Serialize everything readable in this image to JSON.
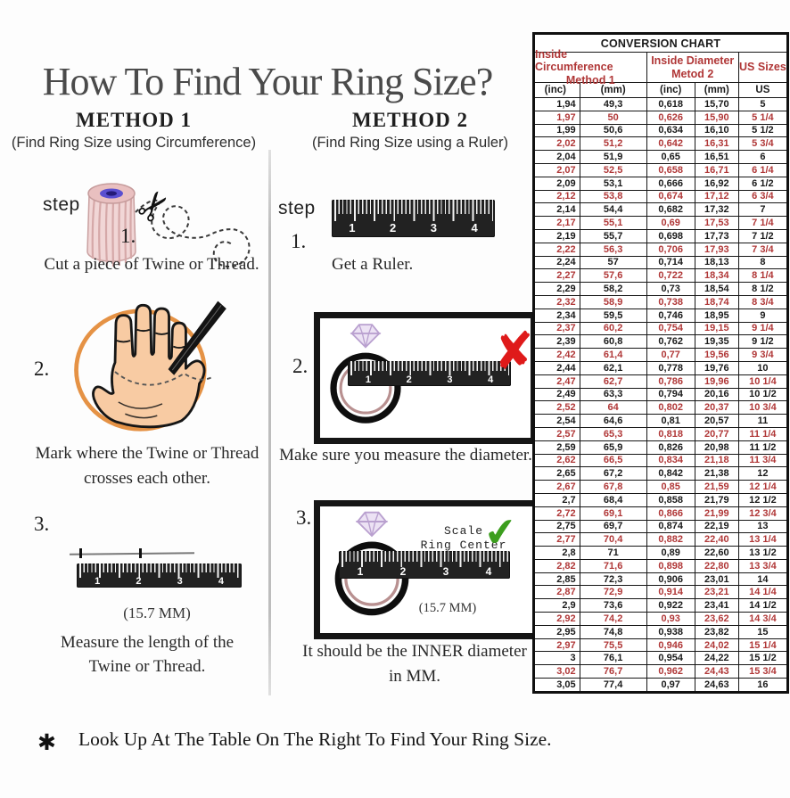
{
  "title": "How To Find Your Ring Size?",
  "method1": {
    "heading": "METHOD 1",
    "subheading": "(Find Ring Size using Circumference)",
    "step_label": "step",
    "step1_num": "1.",
    "step1_caption": "Cut a piece of  Twine or Thread.",
    "step2_num": "2.",
    "step2_caption_line1": "Mark where the Twine or Thread",
    "step2_caption_line2": "crosses each other.",
    "step3_num": "3.",
    "step3_note": "(15.7 MM)",
    "step3_caption_line1": "Measure the length of the",
    "step3_caption_line2": "Twine or Thread."
  },
  "method2": {
    "heading": "METHOD 2",
    "subheading": "(Find Ring Size using a Ruler)",
    "step_label": "step",
    "step1_num": "1.",
    "step1_caption": "Get a Ruler.",
    "step2_num": "2.",
    "step2_caption": "Make sure you measure the diameter.",
    "step3_num": "3.",
    "step3_scale_line1": "Scale",
    "step3_scale_line2": "Ring Center",
    "step3_note": "(15.7 MM)",
    "step3_caption_line1": "It should be the INNER diameter",
    "step3_caption_line2": "in MM.",
    "x_icon": "✘",
    "check_icon": "✔"
  },
  "footnote": {
    "bullet": "✱",
    "text": "Look Up At The Table On The Right To Find Your Ring Size."
  },
  "ruler_numbers": [
    "1",
    "2",
    "3",
    "4"
  ],
  "conversion_chart": {
    "title": "CONVERSION CHART",
    "group_headers": [
      {
        "line1": "Inside Circumference",
        "line2": "Method 1"
      },
      {
        "line1": "Inside Diameter",
        "line2": "Metod 2"
      },
      {
        "line1": "US Sizes",
        "line2": ""
      }
    ],
    "sub_headers": [
      "(inc)",
      "(mm)",
      "(inc)",
      "(mm)",
      "US"
    ],
    "rows": [
      [
        "1,94",
        "49,3",
        "0,618",
        "15,70",
        "5"
      ],
      [
        "1,97",
        "50",
        "0,626",
        "15,90",
        "5 1/4"
      ],
      [
        "1,99",
        "50,6",
        "0,634",
        "16,10",
        "5 1/2"
      ],
      [
        "2,02",
        "51,2",
        "0,642",
        "16,31",
        "5 3/4"
      ],
      [
        "2,04",
        "51,9",
        "0,65",
        "16,51",
        "6"
      ],
      [
        "2,07",
        "52,5",
        "0,658",
        "16,71",
        "6 1/4"
      ],
      [
        "2,09",
        "53,1",
        "0,666",
        "16,92",
        "6 1/2"
      ],
      [
        "2,12",
        "53,8",
        "0,674",
        "17,12",
        "6 3/4"
      ],
      [
        "2,14",
        "54,4",
        "0,682",
        "17,32",
        "7"
      ],
      [
        "2,17",
        "55,1",
        "0,69",
        "17,53",
        "7 1/4"
      ],
      [
        "2,19",
        "55,7",
        "0,698",
        "17,73",
        "7 1/2"
      ],
      [
        "2,22",
        "56,3",
        "0,706",
        "17,93",
        "7 3/4"
      ],
      [
        "2,24",
        "57",
        "0,714",
        "18,13",
        "8"
      ],
      [
        "2,27",
        "57,6",
        "0,722",
        "18,34",
        "8 1/4"
      ],
      [
        "2,29",
        "58,2",
        "0,73",
        "18,54",
        "8 1/2"
      ],
      [
        "2,32",
        "58,9",
        "0,738",
        "18,74",
        "8 3/4"
      ],
      [
        "2,34",
        "59,5",
        "0,746",
        "18,95",
        "9"
      ],
      [
        "2,37",
        "60,2",
        "0,754",
        "19,15",
        "9 1/4"
      ],
      [
        "2,39",
        "60,8",
        "0,762",
        "19,35",
        "9 1/2"
      ],
      [
        "2,42",
        "61,4",
        "0,77",
        "19,56",
        "9 3/4"
      ],
      [
        "2,44",
        "62,1",
        "0,778",
        "19,76",
        "10"
      ],
      [
        "2,47",
        "62,7",
        "0,786",
        "19,96",
        "10 1/4"
      ],
      [
        "2,49",
        "63,3",
        "0,794",
        "20,16",
        "10 1/2"
      ],
      [
        "2,52",
        "64",
        "0,802",
        "20,37",
        "10 3/4"
      ],
      [
        "2,54",
        "64,6",
        "0,81",
        "20,57",
        "11"
      ],
      [
        "2,57",
        "65,3",
        "0,818",
        "20,77",
        "11 1/4"
      ],
      [
        "2,59",
        "65,9",
        "0,826",
        "20,98",
        "11 1/2"
      ],
      [
        "2,62",
        "66,5",
        "0,834",
        "21,18",
        "11 3/4"
      ],
      [
        "2,65",
        "67,2",
        "0,842",
        "21,38",
        "12"
      ],
      [
        "2,67",
        "67,8",
        "0,85",
        "21,59",
        "12 1/4"
      ],
      [
        "2,7",
        "68,4",
        "0,858",
        "21,79",
        "12 1/2"
      ],
      [
        "2,72",
        "69,1",
        "0,866",
        "21,99",
        "12 3/4"
      ],
      [
        "2,75",
        "69,7",
        "0,874",
        "22,19",
        "13"
      ],
      [
        "2,77",
        "70,4",
        "0,882",
        "22,40",
        "13 1/4"
      ],
      [
        "2,8",
        "71",
        "0,89",
        "22,60",
        "13 1/2"
      ],
      [
        "2,82",
        "71,6",
        "0,898",
        "22,80",
        "13 3/4"
      ],
      [
        "2,85",
        "72,3",
        "0,906",
        "23,01",
        "14"
      ],
      [
        "2,87",
        "72,9",
        "0,914",
        "23,21",
        "14 1/4"
      ],
      [
        "2,9",
        "73,6",
        "0,922",
        "23,41",
        "14 1/2"
      ],
      [
        "2,92",
        "74,2",
        "0,93",
        "23,62",
        "14 3/4"
      ],
      [
        "2,95",
        "74,8",
        "0,938",
        "23,82",
        "15"
      ],
      [
        "2,97",
        "75,5",
        "0,946",
        "24,02",
        "15 1/4"
      ],
      [
        "3",
        "76,1",
        "0,954",
        "24,22",
        "15 1/2"
      ],
      [
        "3,02",
        "76,7",
        "0,962",
        "24,43",
        "15 3/4"
      ],
      [
        "3,05",
        "77,4",
        "0,97",
        "24,63",
        "16"
      ]
    ]
  },
  "colors": {
    "accent_red": "#b03737",
    "check_green": "#3c9e1e",
    "x_red": "#df1a1a",
    "skin": "#f8cba3",
    "circle_orange": "#e59245"
  }
}
